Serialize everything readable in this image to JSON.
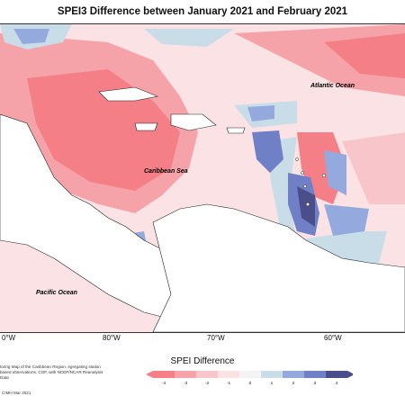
{
  "map": {
    "title": "SPEI3 Difference between January 2021 and February 2021",
    "labels": {
      "atlantic": "Atlantic Ocean",
      "caribbean": "Caribbean Sea",
      "pacific": "Pacific Ocean"
    },
    "longitudes": [
      "0°W",
      "80°W",
      "70°W",
      "60°W"
    ]
  },
  "legend": {
    "title": "SPEI Difference",
    "ticks": [
      "-4",
      "-3",
      "-2",
      "-1",
      "0",
      "1",
      "2",
      "3",
      "4"
    ],
    "colors": [
      "#f47f87",
      "#f5a3a9",
      "#f8c6ca",
      "#fbe3e5",
      "#f4f4f4",
      "#c9dde8",
      "#94aade",
      "#6f80c6",
      "#4a4f8c"
    ]
  },
  "footnote": {
    "text": "toring Map of the Caribbean Region. egregating station based observations, COF, with NCEP/NCAR Reanalysis Data",
    "credit": "CIMH Mar 2021"
  }
}
